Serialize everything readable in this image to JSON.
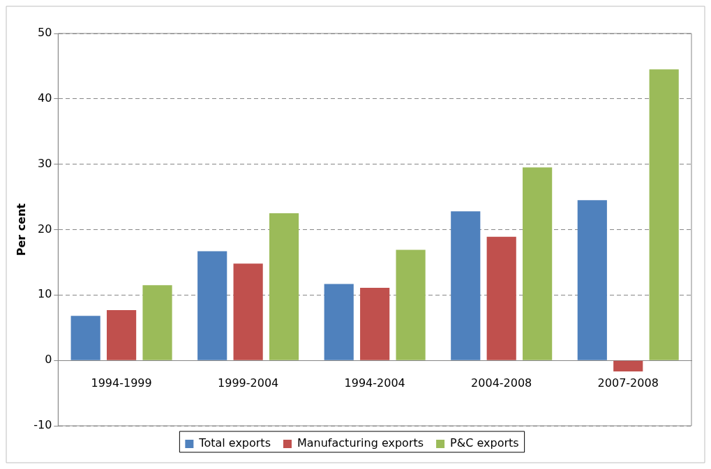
{
  "chart_data": {
    "type": "bar",
    "ylabel": "Per cent",
    "categories": [
      "1994-1999",
      "1999-2004",
      "1994-2004",
      "2004-2008",
      "2007-2008"
    ],
    "series": [
      {
        "name": "Total exports",
        "color": "#4f81bd",
        "values": [
          6.8,
          16.7,
          11.7,
          22.8,
          24.5
        ]
      },
      {
        "name": "Manufacturing exports",
        "color": "#c0504d",
        "values": [
          7.7,
          14.8,
          11.1,
          18.9,
          -1.7
        ]
      },
      {
        "name": "P&C exports",
        "color": "#9bbb59",
        "values": [
          11.5,
          22.5,
          16.9,
          29.5,
          44.5
        ]
      }
    ],
    "ylim": [
      -10,
      50
    ],
    "yticks": [
      -10,
      0,
      10,
      20,
      30,
      40,
      50
    ],
    "grid": "y",
    "legend": "bottom"
  }
}
